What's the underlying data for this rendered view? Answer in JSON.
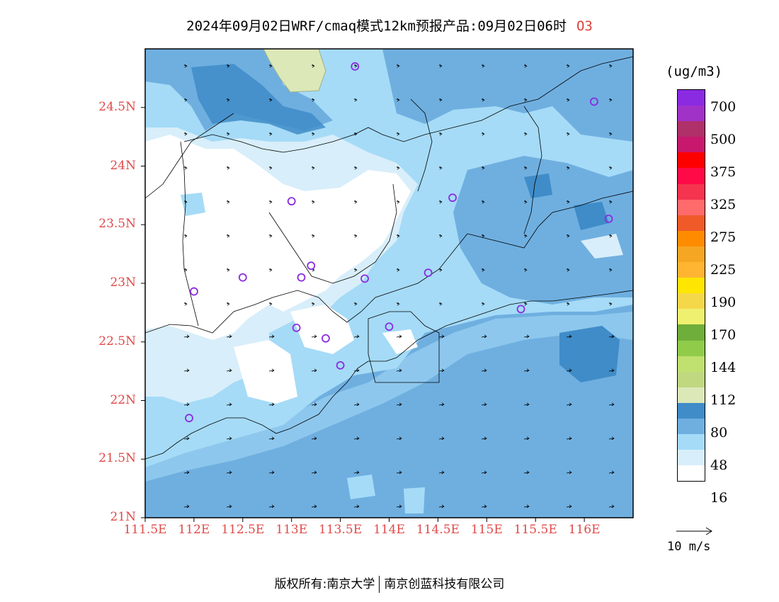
{
  "title": {
    "main": "2024年09月02日WRF/cmaq模式12km预报产品:09月02日06时",
    "pollutant": "O3"
  },
  "map": {
    "lat_ticks": [
      "21N",
      "21.5N",
      "22N",
      "22.5N",
      "23N",
      "23.5N",
      "24N",
      "24.5N"
    ],
    "lon_ticks": [
      "111.5E",
      "112E",
      "112.5E",
      "113E",
      "113.5E",
      "114E",
      "114.5E",
      "115E",
      "115.5E",
      "116E"
    ],
    "lat_range": [
      21.0,
      25.0
    ],
    "lon_range": [
      111.5,
      116.5
    ],
    "site_markers": [
      [
        113.65,
        24.85
      ],
      [
        116.1,
        24.55
      ],
      [
        113.0,
        23.7
      ],
      [
        114.65,
        23.73
      ],
      [
        116.25,
        23.55
      ],
      [
        113.2,
        23.15
      ],
      [
        112.5,
        23.05
      ],
      [
        113.1,
        23.05
      ],
      [
        113.75,
        23.04
      ],
      [
        114.4,
        23.09
      ],
      [
        112.0,
        22.93
      ],
      [
        115.35,
        22.78
      ],
      [
        113.05,
        22.62
      ],
      [
        113.35,
        22.53
      ],
      [
        114.0,
        22.63
      ],
      [
        113.5,
        22.3
      ],
      [
        111.95,
        21.85
      ]
    ]
  },
  "colorbar": {
    "unit": "(ug/m3)",
    "colors": [
      "#8a2be2",
      "#a032c8",
      "#b0306a",
      "#c8186e",
      "#ff0000",
      "#ff0a46",
      "#f5344f",
      "#ff6a6a",
      "#f05a28",
      "#ff8c00",
      "#f5a623",
      "#ffb432",
      "#ffe600",
      "#f5d84a",
      "#f0f070",
      "#6fae3a",
      "#90cc4a",
      "#c0e070",
      "#c0d880",
      "#dce8b8",
      "#3f8cc8",
      "#6fafe0",
      "#a5dbf7",
      "#d8eefa",
      "#ffffff"
    ],
    "labels": [
      "700",
      "500",
      "375",
      "325",
      "275",
      "225",
      "190",
      "170",
      "144",
      "112",
      "80",
      "48",
      "16"
    ]
  },
  "vector_legend": {
    "label": "10 m/s"
  },
  "footer": {
    "left": "版权所有:南京大学",
    "right": "南京创蓝科技有限公司"
  }
}
